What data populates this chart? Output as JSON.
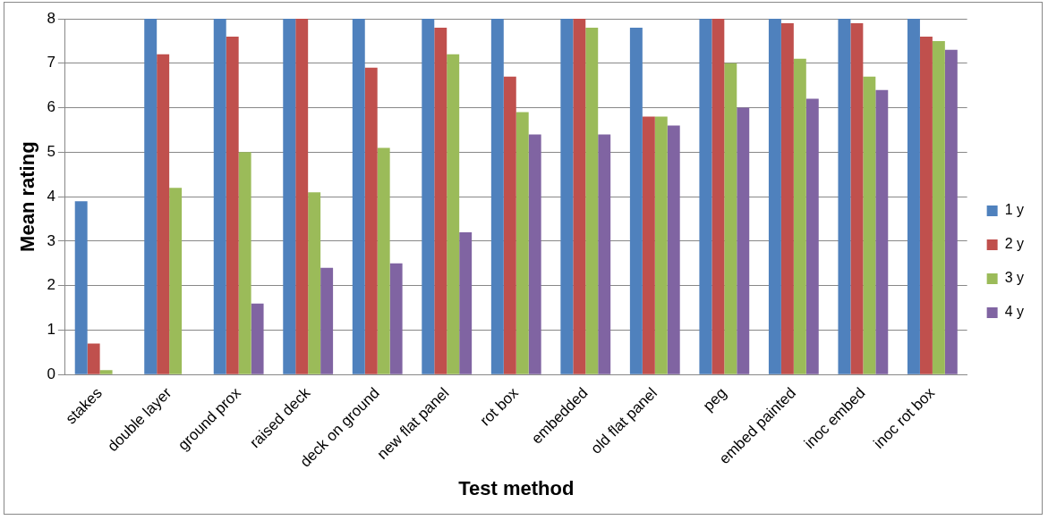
{
  "chart_data": {
    "type": "bar",
    "xlabel": "Test method",
    "ylabel": "Mean rating",
    "categories": [
      "stakes",
      "double layer",
      "ground prox",
      "raised deck",
      "deck on ground",
      "new flat panel",
      "rot box",
      "embedded",
      "old flat panel",
      "peg",
      "embed painted",
      "inoc embed",
      "inoc rot box"
    ],
    "series": [
      {
        "name": "1 y",
        "color": "#4f81bd",
        "values": [
          3.9,
          8,
          8,
          8,
          8,
          8,
          8,
          8,
          7.8,
          8,
          8,
          8,
          8
        ]
      },
      {
        "name": "2 y",
        "color": "#c0504d",
        "values": [
          0.7,
          7.2,
          7.6,
          8,
          6.9,
          7.8,
          6.7,
          8,
          5.8,
          8,
          7.9,
          7.9,
          7.6
        ]
      },
      {
        "name": "3 y",
        "color": "#9bbb59",
        "values": [
          0.1,
          4.2,
          5.0,
          4.1,
          5.1,
          7.2,
          5.9,
          7.8,
          5.8,
          7.0,
          7.1,
          6.7,
          7.5
        ]
      },
      {
        "name": "4 y",
        "color": "#8064a2",
        "values": [
          0,
          0,
          1.6,
          2.4,
          2.5,
          3.2,
          5.4,
          5.4,
          5.6,
          6.0,
          6.2,
          6.4,
          7.3
        ]
      }
    ],
    "ylim": [
      0,
      8
    ],
    "yticks": [
      0,
      1,
      2,
      3,
      4,
      5,
      6,
      7,
      8
    ],
    "grid": "y",
    "legend": "right"
  }
}
